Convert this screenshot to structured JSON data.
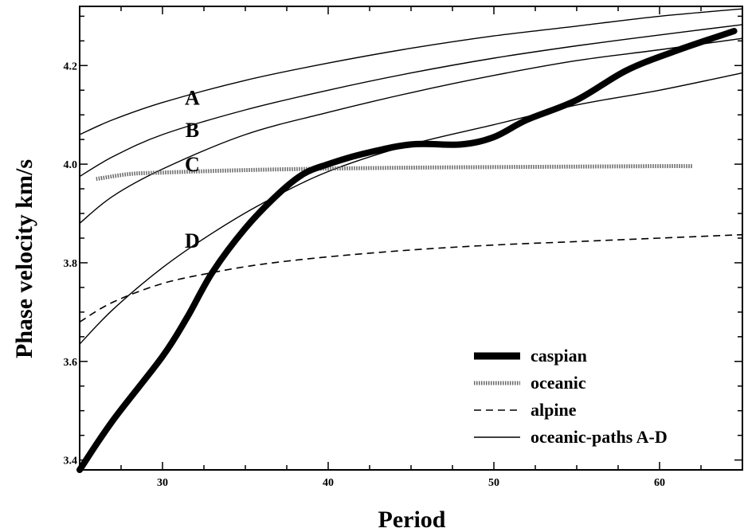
{
  "chart_data": {
    "type": "line",
    "xlabel": "Period",
    "ylabel": "Phase velocity km/s",
    "xlim": [
      25,
      65
    ],
    "ylim": [
      3.38,
      4.32
    ],
    "x_ticks": [
      30,
      40,
      50,
      60
    ],
    "y_ticks": [
      3.4,
      3.6,
      3.8,
      4.0,
      4.2
    ],
    "x_tick_labels": [
      "30",
      "40",
      "50",
      "60"
    ],
    "y_tick_labels": [
      "3.4",
      "3.6",
      "3.8",
      "4.0",
      "4.2"
    ],
    "grid": false,
    "legend_position": "bottom-right",
    "curve_labels": [
      {
        "text": "A",
        "x": 31.8,
        "y": 4.135
      },
      {
        "text": "B",
        "x": 31.8,
        "y": 4.07
      },
      {
        "text": "C",
        "x": 31.8,
        "y": 4.0
      },
      {
        "text": "D",
        "x": 31.8,
        "y": 3.845
      }
    ],
    "series": [
      {
        "name": "caspian",
        "style": "thick",
        "color": "#000000",
        "x": [
          25,
          27,
          30,
          31.5,
          33,
          35,
          37,
          38.5,
          40,
          42,
          45,
          48,
          50,
          52,
          55,
          58,
          61,
          64.5
        ],
        "y": [
          3.38,
          3.48,
          3.61,
          3.69,
          3.78,
          3.87,
          3.94,
          3.98,
          4.0,
          4.02,
          4.04,
          4.04,
          4.055,
          4.09,
          4.13,
          4.19,
          4.23,
          4.27
        ]
      },
      {
        "name": "oceanic",
        "style": "dotted-band",
        "color": "#555555",
        "x": [
          26,
          28,
          30,
          35,
          40,
          45,
          50,
          55,
          60,
          62
        ],
        "y": [
          3.97,
          3.98,
          3.983,
          3.988,
          3.991,
          3.993,
          3.994,
          3.995,
          3.996,
          3.996
        ]
      },
      {
        "name": "alpine",
        "style": "dashed",
        "color": "#000000",
        "x": [
          25,
          27,
          30,
          33,
          36,
          40,
          45,
          50,
          55,
          60,
          65
        ],
        "y": [
          3.68,
          3.72,
          3.758,
          3.78,
          3.797,
          3.812,
          3.826,
          3.836,
          3.843,
          3.85,
          3.857
        ]
      },
      {
        "name": "oceanic-paths A-D",
        "style": "thin",
        "color": "#000000",
        "x": [
          25,
          27,
          30,
          35,
          40,
          45,
          50,
          55,
          60,
          65
        ],
        "y": [
          4.06,
          4.09,
          4.125,
          4.17,
          4.205,
          4.235,
          4.26,
          4.28,
          4.3,
          4.315
        ]
      },
      {
        "name": "",
        "style": "thin",
        "color": "#000000",
        "x": [
          25,
          27,
          30,
          35,
          40,
          45,
          50,
          55,
          60,
          65
        ],
        "y": [
          3.975,
          4.015,
          4.06,
          4.11,
          4.15,
          4.185,
          4.215,
          4.24,
          4.262,
          4.283
        ]
      },
      {
        "name": "",
        "style": "thin",
        "color": "#000000",
        "x": [
          25,
          27,
          30,
          35,
          40,
          45,
          50,
          55,
          60,
          65
        ],
        "y": [
          3.88,
          3.935,
          3.99,
          4.06,
          4.105,
          4.145,
          4.18,
          4.21,
          4.232,
          4.255
        ]
      },
      {
        "name": "",
        "style": "thin",
        "color": "#000000",
        "x": [
          25,
          27,
          30,
          33,
          36,
          40,
          45,
          50,
          55,
          60,
          65
        ],
        "y": [
          3.635,
          3.705,
          3.79,
          3.86,
          3.92,
          3.985,
          4.04,
          4.08,
          4.12,
          4.15,
          4.185
        ]
      }
    ],
    "legend": [
      {
        "label": "caspian",
        "style": "thick"
      },
      {
        "label": "oceanic",
        "style": "dotted-band"
      },
      {
        "label": "alpine",
        "style": "dashed"
      },
      {
        "label": "oceanic-paths A-D",
        "style": "thin"
      }
    ]
  }
}
